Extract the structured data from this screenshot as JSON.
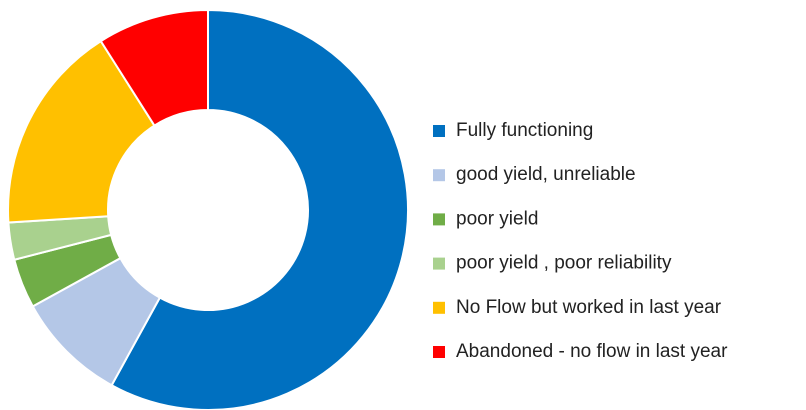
{
  "chart_data": {
    "type": "donut",
    "categories": [
      "Fully functioning",
      "good yield, unreliable",
      "poor yield",
      "poor yield , poor reliability",
      "No Flow but worked in last year",
      "Abandoned - no flow in last year"
    ],
    "values": [
      58,
      9,
      4,
      3,
      17,
      9
    ],
    "colors": [
      "#0070c0",
      "#b4c7e7",
      "#70ad47",
      "#a9d18e",
      "#ffc000",
      "#ff0000"
    ],
    "legend": "right"
  }
}
